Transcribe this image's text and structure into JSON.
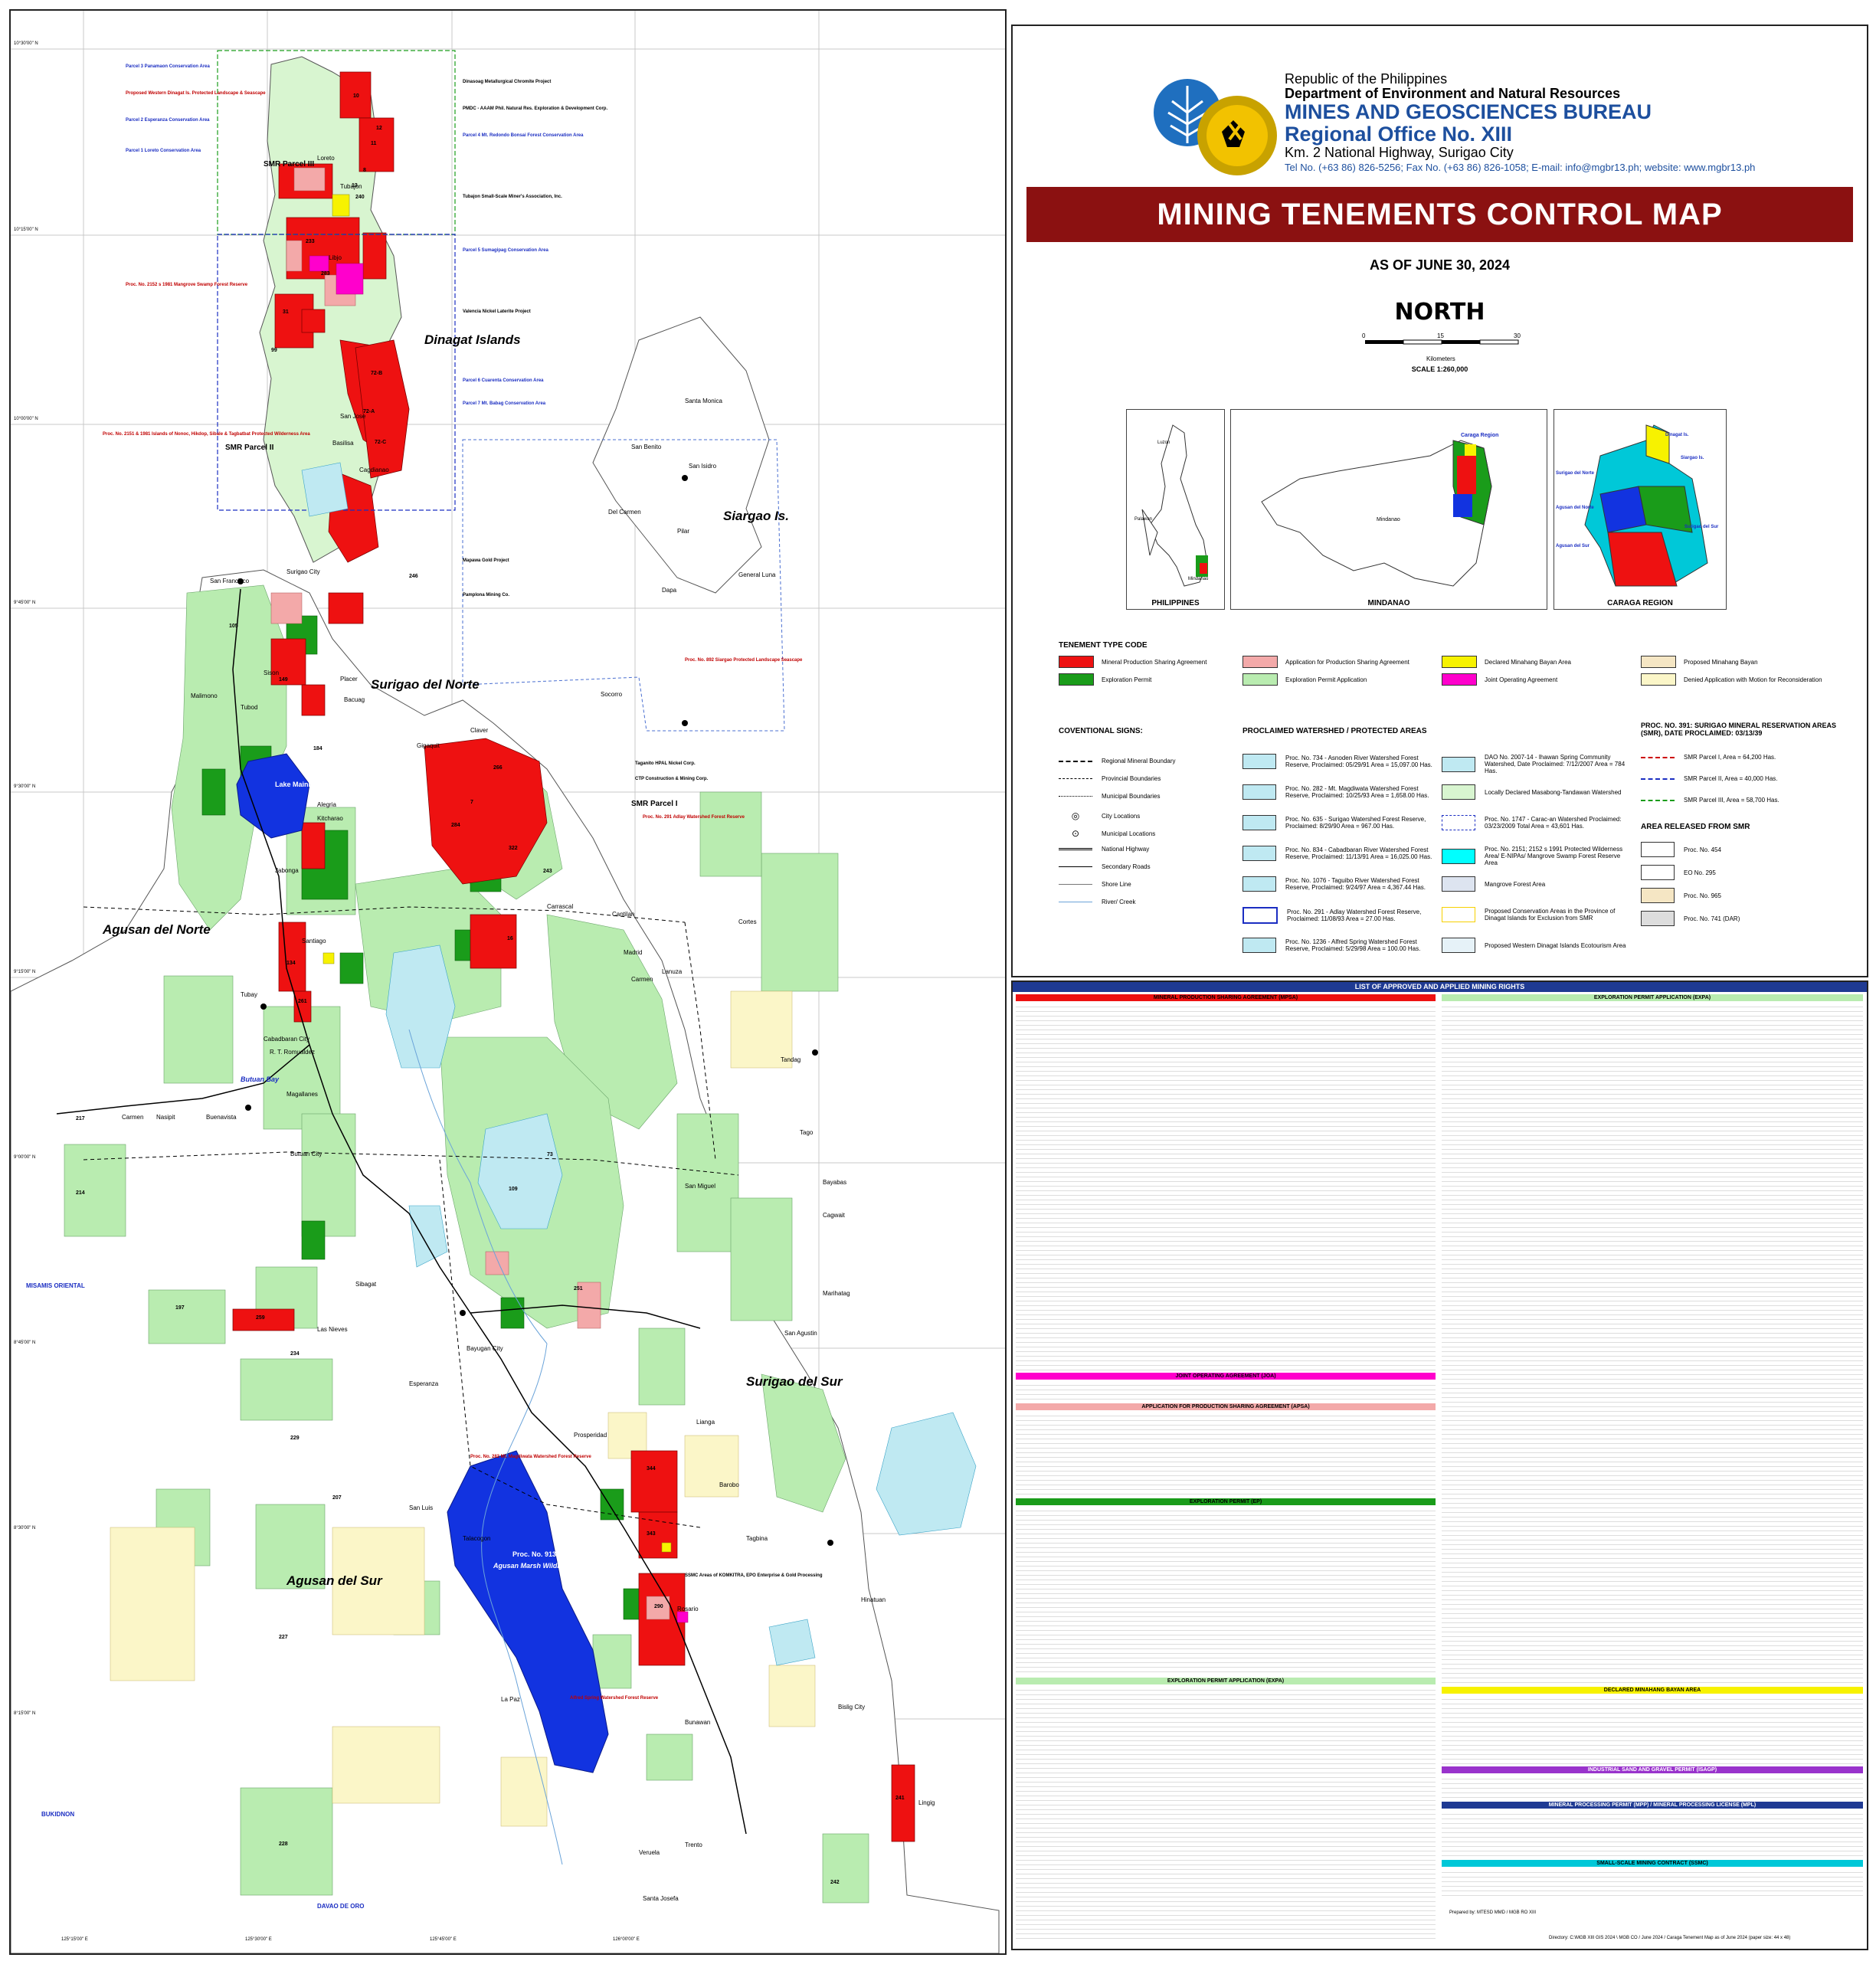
{
  "header": {
    "republic": "Republic of the Philippines",
    "department": "Department of Environment and Natural Resources",
    "bureau": "MINES AND GEOSCIENCES BUREAU",
    "region": "Regional Office No. XIII",
    "address": "Km. 2 National Highway, Surigao City",
    "contact": "Tel No. (+63 86) 826-5256; Fax No. (+63 86) 826-1058; E-mail: info@mgbr13.ph; website: www.mgbr13.ph"
  },
  "title": "MINING TENEMENTS CONTROL MAP",
  "as_of": "AS OF JUNE 30, 2024",
  "north": "NORTH",
  "scale": {
    "ticks": [
      "0",
      "15",
      "30"
    ],
    "unit": "Kilometers",
    "text": "SCALE 1:260,000"
  },
  "insets": [
    {
      "label": "PHILIPPINES",
      "places": [
        "Luzon",
        "Palawan",
        "Mindanao"
      ]
    },
    {
      "label": "MINDANAO",
      "places": [
        "Caraga Region",
        "Mindanao"
      ]
    },
    {
      "label": "CARAGA REGION",
      "places": [
        "Dinagat Is.",
        "Siargao Is.",
        "Surigao del Norte",
        "Agusan del Norte",
        "Agusan del Sur",
        "Surigao del Sur"
      ]
    }
  ],
  "legend": {
    "tenement_heading": "TENEMENT TYPE CODE",
    "tenement_types": [
      {
        "label": "Mineral Production Sharing Agreement",
        "color": "#ee1111"
      },
      {
        "label": "Application for Production Sharing Agreement",
        "color": "#f3a9a9"
      },
      {
        "label": "Declared Minahang Bayan Area",
        "color": "#f7f200"
      },
      {
        "label": "Proposed Minahang Bayan",
        "color": "#f5e6c4"
      },
      {
        "label": "Exploration Permit",
        "color": "#1a9c1a"
      },
      {
        "label": "Exploration Permit Application",
        "color": "#b9ecb0"
      },
      {
        "label": "Joint Operating Agreement",
        "color": "#ff00cc"
      },
      {
        "label": "Denied Application with Motion for Reconsideration",
        "color": "#fbf6c8"
      }
    ],
    "conventional_heading": "COVENTIONAL SIGNS:",
    "conventional_signs": [
      "Regional Mineral Boundary",
      "Provincial Boundaries",
      "Municipal Boundaries",
      "City Locations",
      "Municipal Locations",
      "National Highway",
      "Secondary Roads",
      "Shore Line",
      "River/ Creek"
    ],
    "watershed_heading": "PROCLAIMED WATERSHED / PROTECTED AREAS",
    "watersheds_a": [
      "Proc. No. 734 - Asnoden River Watershed Forest Reserve, Proclaimed: 05/29/91 Area = 15,097.00 Has.",
      "Proc. No. 282 - Mt. Magdiwata Watershed Forest Reserve, Proclaimed: 10/25/93 Area = 1,658.00 Has.",
      "Proc. No. 635 - Surigao Watershed Forest Reserve, Proclaimed: 8/29/90 Area = 967.00 Has.",
      "Proc. No. 834 - Cabadbaran River Watershed Forest Reserve, Proclaimed: 11/13/91 Area = 16,025.00 Has.",
      "Proc. No. 1076 - Taguibo River Watershed Forest Reserve, Proclaimed: 9/24/97 Area = 4,367.44 Has.",
      "Proc. No. 291 - Adlay Watershed Forest Reserve, Proclaimed: 11/08/93 Area = 27.00 Has.",
      "Proc. No. 1236 - Alfred Spring Watershed Forest Reserve, Proclaimed: 5/29/98 Area = 100.00 Has."
    ],
    "watersheds_b": [
      "DAO No. 2007-14 - Ihawan Spring Community Watershed, Date Proclaimed: 7/12/2007 Area = 784 Has.",
      "Locally Declared Masabong-Tandawan Watershed",
      "Proc. No. 1747 - Carac-an Watershed Proclaimed: 03/23/2009 Total Area = 43,601 Has.",
      "Proc. No. 2151; 2152 s 1991 Protected Wilderness Area/ E-NIPAs/ Mangrove Swamp Forest Reserve Area",
      "Mangrove Forest Area",
      "Proposed Conservation Areas in the Province of Dinagat Islands for Exclusion from SMR",
      "Proposed Western Dinagat Islands Ecotourism Area"
    ],
    "smr_heading": "PROC. NO. 391: SURIGAO MINERAL RESERVATION AREAS (SMR), DATE PROCLAIMED: 03/13/39",
    "smr": [
      "SMR Parcel I, Area = 64,200 Has.",
      "SMR Parcel II, Area = 40,000 Has.",
      "SMR Parcel III, Area = 58,700 Has."
    ],
    "released_heading": "AREA RELEASED FROM SMR",
    "released": [
      "Proc. No. 454",
      "EO No. 295",
      "Proc. No. 965",
      "Proc. No. 741 (DAR)"
    ]
  },
  "list": {
    "title": "LIST OF APPROVED AND APPLIED MINING RIGHTS",
    "left_sections": [
      {
        "title": "MINERAL PRODUCTION SHARING AGREEMENT (MPSA)",
        "color": "#ee1111"
      },
      {
        "title": "JOINT OPERATING AGREEMENT (JOA)",
        "color": "#ff00cc"
      },
      {
        "title": "APPLICATION FOR PRODUCTION SHARING AGREEMENT (APSA)",
        "color": "#f3a9a9"
      },
      {
        "title": "EXPLORATION PERMIT (EP)",
        "color": "#1a9c1a"
      },
      {
        "title": "EXPLORATION PERMIT APPLICATION (EXPA)",
        "color": "#b9ecb0"
      }
    ],
    "right_sections": [
      {
        "title": "EXPLORATION PERMIT APPLICATION (EXPA)",
        "color": "#b9ecb0"
      },
      {
        "title": "DECLARED MINAHANG BAYAN AREA",
        "color": "#f7f200"
      },
      {
        "title": "INDUSTRIAL SAND AND GRAVEL PERMIT (ISAGP)",
        "color": "#9933cc"
      },
      {
        "title": "MINERAL PROCESSING PERMIT (MPP) / MINERAL PROCESSING LICENSE (MPL)",
        "color": "#1f3a93"
      },
      {
        "title": "SMALL-SCALE MINING CONTRACT (SSMC)",
        "color": "#00c8d8"
      }
    ],
    "footer_prepared": "Prepared by: MTESD MMD / MGB RO XIII",
    "footer_directory": "Directory: C:\\MGB XIII GIS 2024 \\ MGB CO / June 2024 / Caraga Tenement Map as of June 2024 (paper size: 44 x 48)"
  },
  "map": {
    "provinces": [
      "Dinagat Islands",
      "Siargao Is.",
      "Surigao del Norte",
      "Agusan del Norte",
      "Surigao del Sur",
      "Agusan del Sur"
    ],
    "smr_labels": [
      "SMR Parcel III",
      "SMR Parcel II",
      "SMR Parcel I"
    ],
    "places": [
      "Loreto",
      "Tubajon",
      "Libjo",
      "San Jose",
      "Basilisa",
      "Cagdianao",
      "Santa Monica",
      "San Benito",
      "San Isidro",
      "Del Carmen",
      "Pilar",
      "Dapa",
      "General Luna",
      "Socorro",
      "Surigao City",
      "San Francisco",
      "Malimono",
      "Sison",
      "Placer",
      "Bacuag",
      "Claver",
      "Gigaquit",
      "Tubod",
      "Alegria",
      "Kitcharao",
      "Jabonga",
      "Santiago",
      "Carrascal",
      "Cantilan",
      "Madrid",
      "Lanuza",
      "Cortes",
      "Carmen",
      "Tandag",
      "Tubay",
      "Cabadbaran City",
      "R. T. Romualdez",
      "Magallanes",
      "Butuan City",
      "Las Nieves",
      "Buenavista",
      "Nasipit",
      "Carmen",
      "Tago",
      "San Miguel",
      "Bayabas",
      "Cagwait",
      "Marihatag",
      "San Agustin",
      "Sibagat",
      "Bayugan City",
      "Esperanza",
      "Prosperidad",
      "Lianga",
      "Barobo",
      "San Luis",
      "Talacogon",
      "Tagbina",
      "Hinatuan",
      "Rosario",
      "Bunawan",
      "La Paz",
      "Trento",
      "Bislig City",
      "Veruela",
      "Lingig",
      "Santa Josefa",
      "Loreto"
    ],
    "region_labels": [
      "MISAMIS ORIENTAL",
      "BUKIDNON",
      "DAVAO DE ORO",
      "Butuan Bay"
    ],
    "lake_labels": [
      "Lake Mainit",
      "Agusan Marsh Wildlife Sanctuary",
      "Proc. No. 913 s 1996"
    ],
    "tenement_numbers": [
      "10",
      "12",
      "11",
      "8",
      "13",
      "240",
      "233",
      "31",
      "283",
      "99",
      "72-B",
      "72-A",
      "72-C",
      "246",
      "105",
      "149",
      "184",
      "7",
      "266",
      "284",
      "322",
      "243",
      "16",
      "134",
      "261",
      "109",
      "73",
      "251",
      "259",
      "344",
      "343",
      "290",
      "241",
      "242",
      "197",
      "234",
      "229",
      "227",
      "228",
      "207",
      "217",
      "214",
      "17",
      "1",
      "18",
      "221",
      "163",
      "115",
      "169",
      "151",
      "159",
      "213",
      "145",
      "157",
      "274",
      "63",
      "43",
      "3",
      "40",
      "26",
      "236",
      "201",
      "235",
      "225",
      "256",
      "37",
      "258",
      "247"
    ],
    "notes_blue": [
      "Parcel 3 Panamaon Conservation Area",
      "Parcel 2 Esperanza Conservation Area",
      "Parcel 1 Loreto Conservation Area",
      "Parcel 4 Mt. Redondo Bonsai Forest Conservation Area",
      "Parcel 5 Sumagipag Conservation Area",
      "Parcel 6 Cuarenta Conservation Area",
      "Parcel 7 Mt. Babag Conservation Area"
    ],
    "notes_red": [
      "Proposed Western Dinagat Is. Protected Landscape & Seascape",
      "Proc. No. 2152 s 1981 Mangrove Swamp Forest Reserve",
      "Proc. No. 2151 & 1981 Islands of Nonoc, Hikdop, Sibale & Tagbatbat Protected Wilderness Area",
      "Proc. No. 892 Siargao Protected Landscape Seascape",
      "Proc. No. 282 Mt. Magdiwata Watershed Forest Reserve",
      "Alfred Spring Watershed Forest Reserve",
      "Proc. No. 291 Adlay Watershed Forest Reserve"
    ],
    "notes_black": [
      "Dinasoag Metallurgical Chromite Project",
      "PMDC - AAAM Phil. Natural Res. Exploration & Development Corp.",
      "Tubajon Small-Scale Miner's Association, Inc.",
      "Valencia Nickel Laterite Project",
      "Pamplona Mining Co.",
      "Taganito HPAL Nickel Corp.",
      "CTP Construction & Mining Corp.",
      "SSMC Areas of KOMKITRA, EPO Enterprise & Gold Processing",
      "Mapawa Gold Project"
    ],
    "lat_labels": [
      "10°30'00\" N",
      "10°15'00\" N",
      "10°00'00\" N",
      "9°45'00\" N",
      "9°30'00\" N",
      "9°15'00\" N",
      "9°00'00\" N",
      "8°45'00\" N",
      "8°30'00\" N",
      "8°15'00\" N"
    ],
    "lon_labels": [
      "125°15'00\" E",
      "125°30'00\" E",
      "125°45'00\" E",
      "126°00'00\" E"
    ]
  }
}
